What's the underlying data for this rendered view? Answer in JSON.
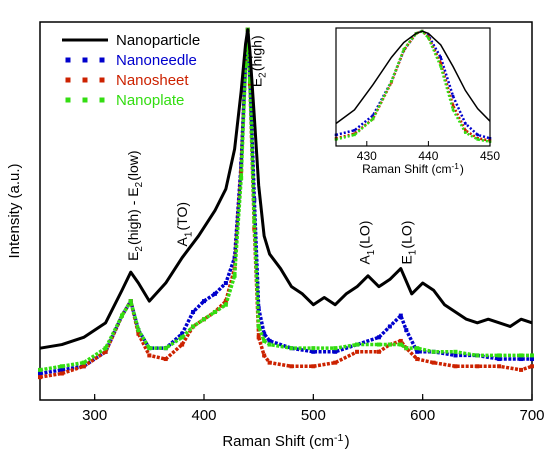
{
  "chart_data": [
    {
      "type": "line",
      "xlabel": "Raman Shift (cm-1)",
      "ylabel": "Intensity (a.u.)",
      "xlim": [
        250,
        700
      ],
      "xticks": [
        300,
        400,
        500,
        600,
        700
      ],
      "ylim": [
        0,
        1
      ],
      "y_tick_labels": false,
      "grid": false,
      "legend": {
        "position": "top-left"
      },
      "series": [
        {
          "name": "Nanoparticle",
          "color": "#000000",
          "style": "line",
          "x": [
            250,
            270,
            290,
            310,
            325,
            333,
            340,
            350,
            365,
            380,
            395,
            410,
            420,
            428,
            434,
            438,
            440,
            442,
            446,
            450,
            455,
            460,
            470,
            480,
            490,
            500,
            510,
            520,
            530,
            540,
            550,
            560,
            570,
            580,
            590,
            600,
            610,
            620,
            630,
            640,
            650,
            660,
            670,
            680,
            690,
            700
          ],
          "y": [
            0.11,
            0.12,
            0.14,
            0.18,
            0.27,
            0.32,
            0.29,
            0.24,
            0.29,
            0.36,
            0.42,
            0.49,
            0.55,
            0.66,
            0.82,
            0.95,
            0.99,
            0.93,
            0.75,
            0.56,
            0.42,
            0.37,
            0.33,
            0.28,
            0.26,
            0.23,
            0.25,
            0.23,
            0.26,
            0.28,
            0.31,
            0.28,
            0.3,
            0.33,
            0.26,
            0.29,
            0.27,
            0.23,
            0.21,
            0.19,
            0.18,
            0.19,
            0.18,
            0.17,
            0.19,
            0.18
          ]
        },
        {
          "name": "Nanoneedle",
          "color": "#0000cc",
          "style": "markers",
          "x": [
            250,
            270,
            290,
            310,
            325,
            333,
            340,
            350,
            365,
            380,
            390,
            400,
            410,
            420,
            428,
            434,
            438,
            440,
            442,
            446,
            450,
            455,
            460,
            480,
            500,
            520,
            540,
            560,
            570,
            580,
            585,
            595,
            610,
            630,
            650,
            670,
            690,
            700
          ],
          "y": [
            0.04,
            0.05,
            0.06,
            0.1,
            0.2,
            0.24,
            0.16,
            0.11,
            0.11,
            0.15,
            0.21,
            0.24,
            0.26,
            0.29,
            0.36,
            0.62,
            0.9,
            0.99,
            0.86,
            0.52,
            0.22,
            0.15,
            0.13,
            0.11,
            0.1,
            0.1,
            0.12,
            0.14,
            0.17,
            0.2,
            0.16,
            0.1,
            0.1,
            0.09,
            0.09,
            0.08,
            0.08,
            0.08
          ]
        },
        {
          "name": "Nanosheet",
          "color": "#cc2200",
          "style": "markers",
          "x": [
            250,
            270,
            290,
            310,
            325,
            333,
            340,
            350,
            365,
            380,
            390,
            400,
            410,
            420,
            428,
            434,
            438,
            440,
            442,
            446,
            450,
            455,
            460,
            480,
            500,
            520,
            540,
            560,
            570,
            580,
            585,
            595,
            610,
            630,
            650,
            670,
            690,
            700
          ],
          "y": [
            0.03,
            0.04,
            0.06,
            0.1,
            0.2,
            0.24,
            0.15,
            0.09,
            0.08,
            0.12,
            0.17,
            0.19,
            0.21,
            0.24,
            0.33,
            0.6,
            0.9,
            0.99,
            0.84,
            0.44,
            0.14,
            0.09,
            0.07,
            0.06,
            0.06,
            0.07,
            0.1,
            0.1,
            0.12,
            0.13,
            0.11,
            0.08,
            0.07,
            0.06,
            0.06,
            0.06,
            0.05,
            0.06
          ]
        },
        {
          "name": "Nanoplate",
          "color": "#33dd11",
          "style": "markers",
          "x": [
            250,
            270,
            290,
            310,
            325,
            333,
            340,
            350,
            365,
            380,
            390,
            400,
            410,
            420,
            428,
            434,
            438,
            440,
            442,
            446,
            450,
            455,
            460,
            480,
            500,
            520,
            540,
            560,
            570,
            580,
            585,
            595,
            610,
            630,
            650,
            670,
            690,
            700
          ],
          "y": [
            0.05,
            0.06,
            0.07,
            0.11,
            0.2,
            0.24,
            0.16,
            0.11,
            0.11,
            0.14,
            0.17,
            0.19,
            0.21,
            0.23,
            0.31,
            0.58,
            0.89,
            0.99,
            0.85,
            0.46,
            0.17,
            0.13,
            0.12,
            0.11,
            0.11,
            0.11,
            0.12,
            0.12,
            0.12,
            0.12,
            0.11,
            0.11,
            0.1,
            0.1,
            0.09,
            0.09,
            0.09,
            0.09
          ]
        }
      ],
      "annotations": [
        {
          "text": "E2(high) - E2(low)",
          "x": 335,
          "y": 0.34,
          "color": "#000000"
        },
        {
          "text": "A1(TO)",
          "x": 380,
          "y": 0.38,
          "color": "#000000"
        },
        {
          "text": "E2(high)",
          "x": 448,
          "y": 0.82,
          "color": "#000000"
        },
        {
          "text": "A1(LO)",
          "x": 547,
          "y": 0.33,
          "color": "#000000"
        },
        {
          "text": "E1(LO)",
          "x": 585,
          "y": 0.33,
          "color": "#000000"
        }
      ]
    },
    {
      "type": "line",
      "role": "inset",
      "position": "top-right",
      "xlabel": "Raman Shift (cm-1)",
      "xlim": [
        425,
        450
      ],
      "xticks": [
        430,
        440,
        450
      ],
      "ylim": [
        0,
        1
      ],
      "y_tick_labels": false,
      "series": [
        {
          "name": "Nanoparticle",
          "color": "#000000",
          "style": "line",
          "x": [
            425,
            428,
            431,
            434,
            436,
            438,
            439,
            440,
            442,
            444,
            446,
            448,
            450
          ],
          "y": [
            0.18,
            0.3,
            0.52,
            0.76,
            0.89,
            0.97,
            0.99,
            0.97,
            0.87,
            0.68,
            0.47,
            0.31,
            0.2
          ]
        },
        {
          "name": "Nanoneedle",
          "color": "#0000cc",
          "style": "markers",
          "x": [
            425,
            428,
            431,
            434,
            436,
            438,
            439,
            440,
            442,
            444,
            446,
            448,
            450
          ],
          "y": [
            0.08,
            0.12,
            0.25,
            0.55,
            0.82,
            0.97,
            0.99,
            0.95,
            0.76,
            0.42,
            0.18,
            0.08,
            0.05
          ]
        },
        {
          "name": "Nanosheet",
          "color": "#cc2200",
          "style": "markers",
          "x": [
            425,
            428,
            431,
            434,
            436,
            438,
            439,
            440,
            442,
            444,
            446,
            448,
            450
          ],
          "y": [
            0.05,
            0.09,
            0.22,
            0.54,
            0.82,
            0.97,
            0.99,
            0.94,
            0.71,
            0.34,
            0.12,
            0.05,
            0.03
          ]
        },
        {
          "name": "Nanoplate",
          "color": "#33dd11",
          "style": "markers",
          "x": [
            425,
            428,
            431,
            434,
            436,
            438,
            439,
            440,
            442,
            444,
            446,
            448,
            450
          ],
          "y": [
            0.04,
            0.08,
            0.22,
            0.55,
            0.83,
            0.97,
            0.99,
            0.93,
            0.68,
            0.3,
            0.1,
            0.04,
            0.02
          ]
        }
      ]
    }
  ]
}
